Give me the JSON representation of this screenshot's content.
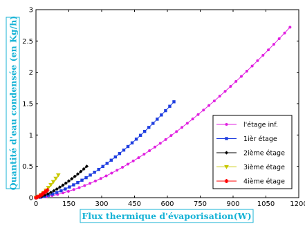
{
  "chart_data": {
    "type": "line",
    "title": "",
    "xlabel": "Flux thermique d'évaporisation(W)",
    "ylabel": "Quantité d'eau condensée (en Kg/h)",
    "xlim": [
      0,
      1200
    ],
    "ylim": [
      0,
      3
    ],
    "x_ticks": [
      0,
      150,
      300,
      450,
      600,
      750,
      900,
      1050,
      1200
    ],
    "y_ticks": [
      0,
      0.5,
      1,
      1.5,
      2,
      2.5,
      3
    ],
    "x_tick_labels": [
      "0",
      "150",
      "300",
      "450",
      "600",
      "750",
      "900",
      "1050",
      "1200"
    ],
    "y_tick_labels": [
      "0",
      "0.5",
      "1",
      "1.5",
      "2",
      "2.5",
      "3"
    ],
    "grid": false,
    "legend_position": "bottom-right",
    "series": [
      {
        "name": "l'étage inf.",
        "color": "#e020e0",
        "marker": "circle",
        "x_max": 1160,
        "y_max": 2.72,
        "exponent": 1.6,
        "points": 48
      },
      {
        "name": "1ièr étage",
        "color": "#1f3ee0",
        "marker": "square",
        "x_max": 630,
        "y_max": 1.53,
        "exponent": 1.55,
        "points": 34
      },
      {
        "name": "2ième étage",
        "color": "#000000",
        "marker": "diamond",
        "x_max": 232,
        "y_max": 0.5,
        "exponent": 1.45,
        "points": 18
      },
      {
        "name": "3ième étage",
        "color": "#c8c800",
        "marker": "triangle-down",
        "x_max": 102,
        "y_max": 0.36,
        "exponent": 1.4,
        "points": 10
      },
      {
        "name": "4ième étage",
        "color": "#ff0000",
        "marker": "star",
        "x_max": 52,
        "y_max": 0.12,
        "exponent": 1.3,
        "points": 8
      }
    ]
  }
}
